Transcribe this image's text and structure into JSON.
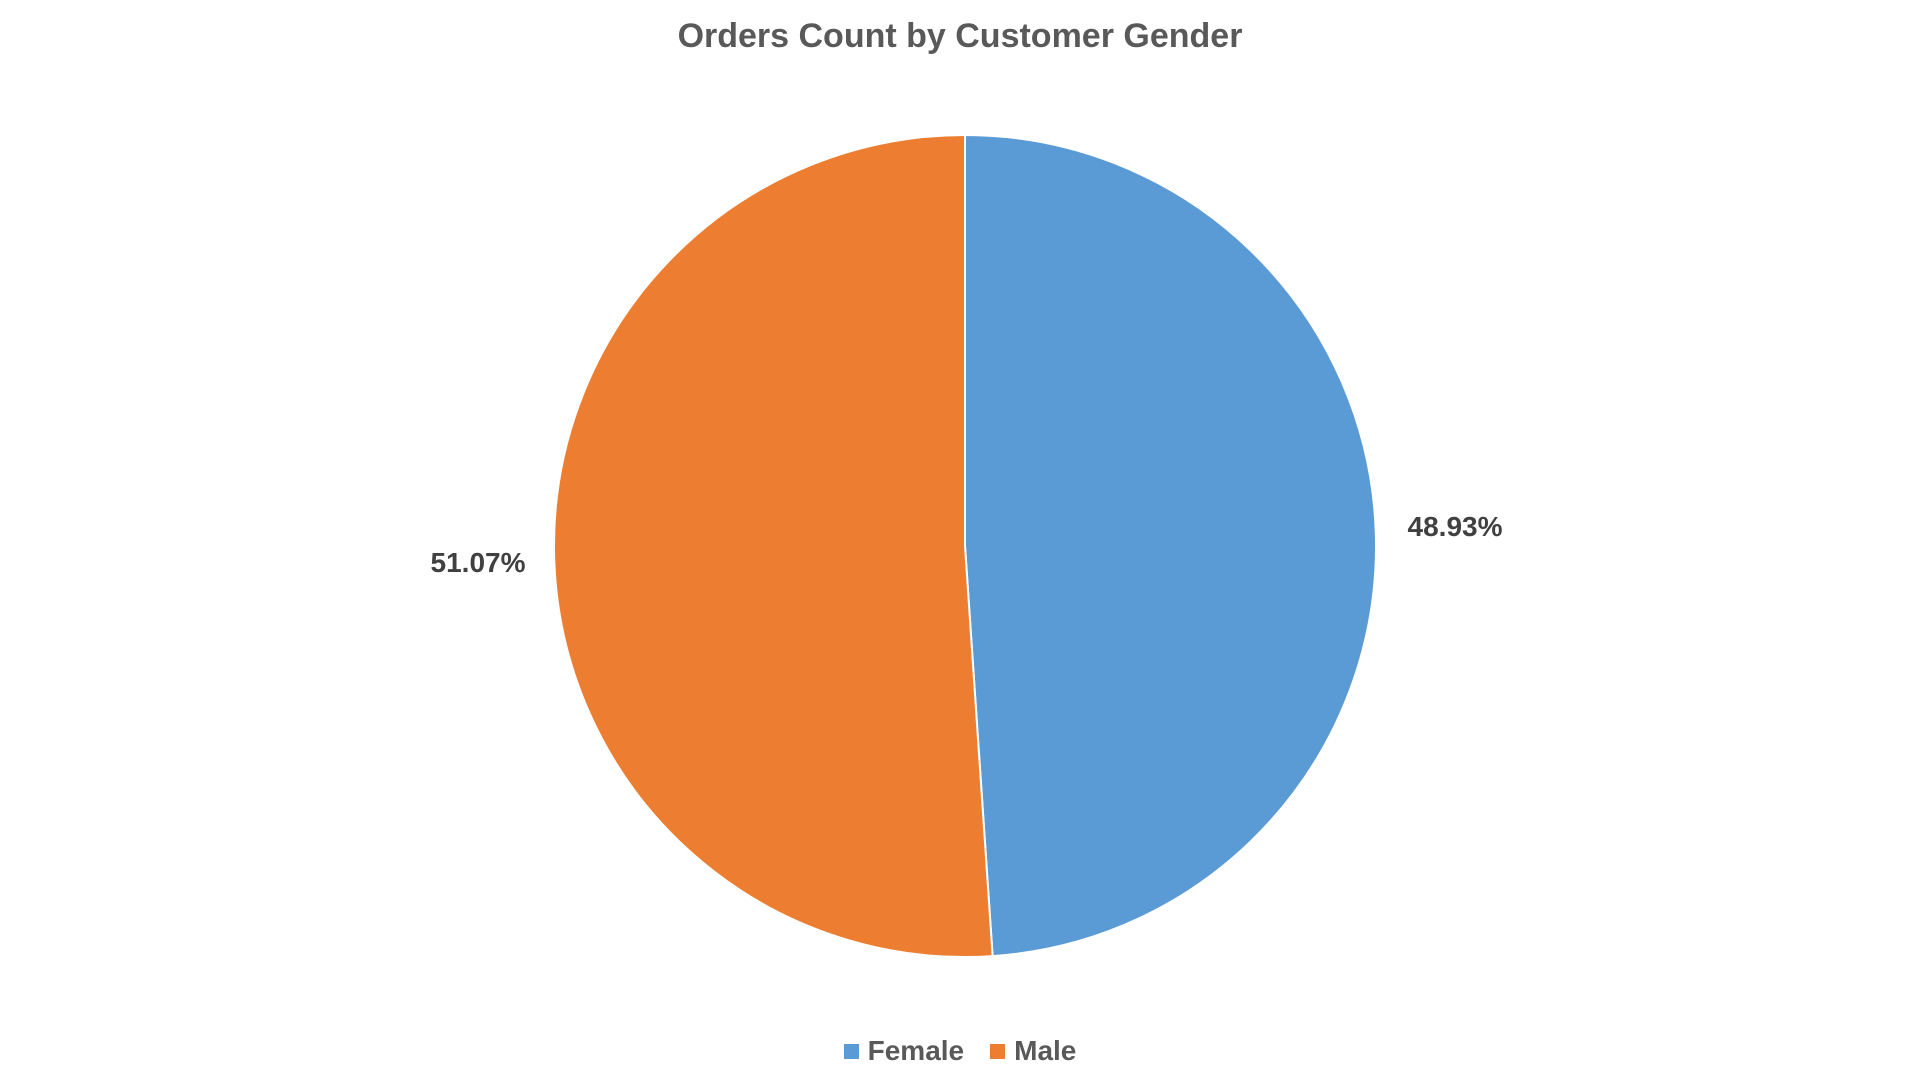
{
  "chart_data": {
    "type": "pie",
    "title": "Orders Count by Customer Gender",
    "categories": [
      "Female",
      "Male"
    ],
    "values": [
      48.93,
      51.07
    ],
    "labels": [
      "48.93%",
      "51.07%"
    ],
    "colors": [
      "#5B9BD5",
      "#ED7D31"
    ],
    "start_angle": "12 o'clock, clockwise",
    "legend_placement": "bottom"
  }
}
